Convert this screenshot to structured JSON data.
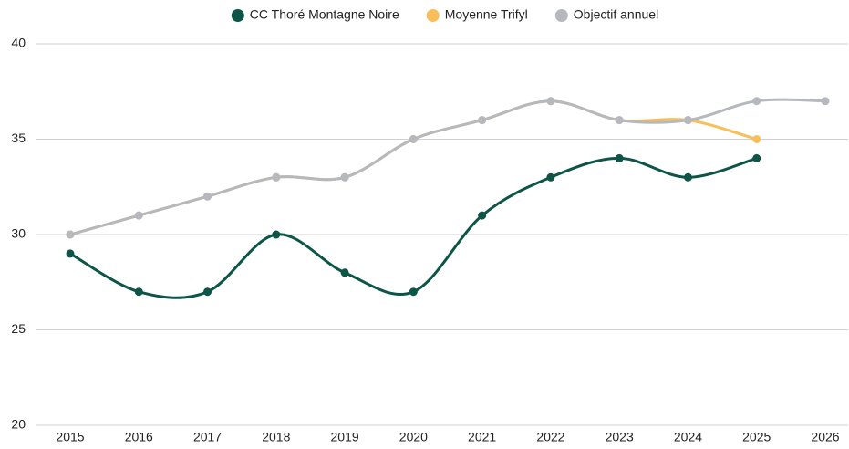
{
  "chart_data": {
    "type": "line",
    "categories": [
      "2015",
      "2016",
      "2017",
      "2018",
      "2019",
      "2020",
      "2021",
      "2022",
      "2023",
      "2024",
      "2025",
      "2026"
    ],
    "series": [
      {
        "name": "CC Thoré Montagne Noire",
        "color": "#0d5547",
        "values": [
          29,
          27,
          27,
          30,
          28,
          27,
          31,
          33,
          34,
          33,
          34,
          null
        ]
      },
      {
        "name": "Moyenne Trifyl",
        "color": "#f9bd59",
        "values": [
          30,
          31,
          32,
          33,
          33,
          35,
          36,
          37,
          36,
          36,
          35,
          null
        ]
      },
      {
        "name": "Objectif annuel",
        "color": "#b5b9be",
        "values": [
          30,
          31,
          32,
          33,
          33,
          35,
          36,
          37,
          36,
          36,
          37,
          37
        ]
      }
    ],
    "ylim": [
      20,
      40
    ],
    "yticks": [
      20,
      25,
      30,
      35,
      40
    ],
    "grid": true,
    "legend": "top"
  }
}
